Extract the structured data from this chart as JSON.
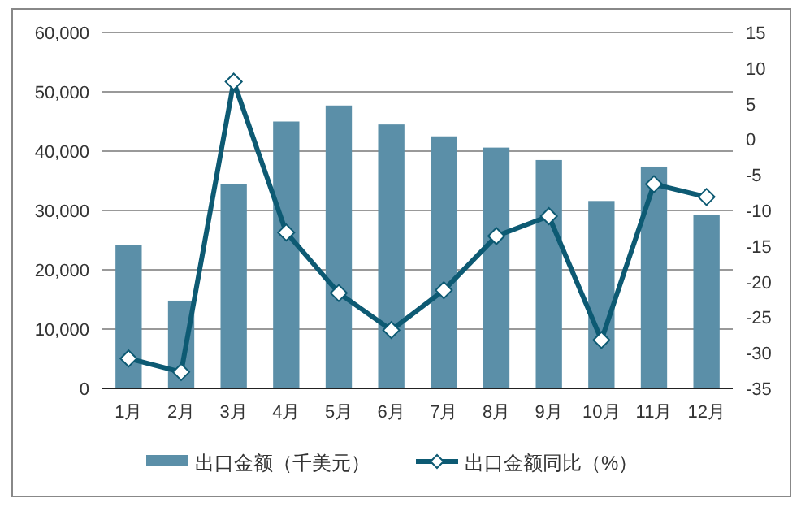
{
  "chart_data": {
    "type": "bar",
    "categories": [
      "1月",
      "2月",
      "3月",
      "4月",
      "5月",
      "6月",
      "7月",
      "8月",
      "9月",
      "10月",
      "11月",
      "12月"
    ],
    "series": [
      {
        "name": "出口金额（千美元）",
        "color": "#5b8fa8",
        "values": [
          24200,
          14800,
          34500,
          45000,
          47700,
          44500,
          42500,
          40600,
          38500,
          31600,
          37400,
          29200
        ]
      },
      {
        "name": "出口金额同比（%）",
        "type": "line",
        "axis": "y2",
        "marker": "diamond",
        "color": "#0d5a73",
        "values": [
          -30.8,
          -32.7,
          8.1,
          -13.1,
          -21.6,
          -26.8,
          -21.2,
          -13.6,
          -10.8,
          -28.2,
          -6.3,
          -8.1
        ]
      }
    ],
    "ylim": [
      0,
      60000
    ],
    "yticks": [
      {
        "value": 0,
        "label": "0"
      },
      {
        "value": 10000,
        "label": "10,000"
      },
      {
        "value": 20000,
        "label": "20,000"
      },
      {
        "value": 30000,
        "label": "30,000"
      },
      {
        "value": 40000,
        "label": "40,000"
      },
      {
        "value": 50000,
        "label": "50,000"
      },
      {
        "value": 60000,
        "label": "60,000"
      }
    ],
    "y2lim": [
      -35,
      15
    ],
    "y2ticks": [
      -35,
      -30,
      -25,
      -20,
      -15,
      -10,
      -5,
      0,
      5,
      10,
      15
    ],
    "grid": "y",
    "legend": "bottom"
  }
}
